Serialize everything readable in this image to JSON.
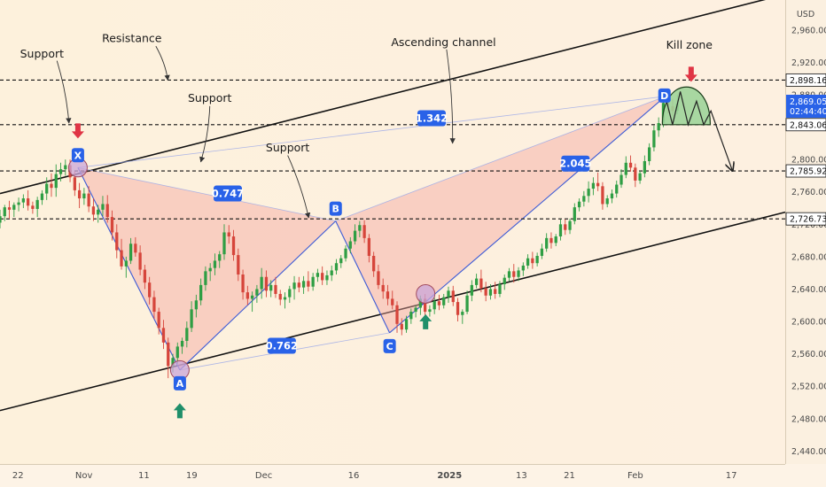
{
  "chart_data": {
    "type": "candlestick",
    "currency": "USD",
    "yaxis_ticks": [
      2960,
      2920,
      2880,
      2840,
      2800,
      2760,
      2720,
      2680,
      2640,
      2600,
      2560,
      2520,
      2480,
      2440
    ],
    "yaxis_tick_labels": [
      "2,960.00",
      "2,920.00",
      "2,880.00",
      "2,840.00",
      "2,800.00",
      "2,760.00",
      "2,720.00",
      "2,680.00",
      "2,640.00",
      "2,600.00",
      "2,560.00",
      "2,520.00",
      "2,480.00",
      "2,440.00"
    ],
    "ylim": [
      2424,
      2997
    ],
    "xaxis_labels": [
      {
        "label": "22",
        "day": -11,
        "bold": false
      },
      {
        "label": "Nov",
        "day": 0,
        "bold": false
      },
      {
        "label": "11",
        "day": 10,
        "bold": false
      },
      {
        "label": "19",
        "day": 18,
        "bold": false
      },
      {
        "label": "Dec",
        "day": 30,
        "bold": false
      },
      {
        "label": "16",
        "day": 45,
        "bold": false
      },
      {
        "label": "2025",
        "day": 61,
        "bold": true
      },
      {
        "label": "13",
        "day": 73,
        "bold": false
      },
      {
        "label": "21",
        "day": 81,
        "bold": false
      },
      {
        "label": "Feb",
        "day": 92,
        "bold": false
      },
      {
        "label": "17",
        "day": 108,
        "bold": false
      }
    ],
    "xlim": [
      -14,
      117
    ],
    "price_levels": [
      {
        "value": 2898.16,
        "label": "2,898.16"
      },
      {
        "value": 2843.06,
        "label": "2,843.06"
      },
      {
        "value": 2785.92,
        "label": "2,785.92"
      },
      {
        "value": 2726.73,
        "label": "2,726.73"
      }
    ],
    "current_price": {
      "value": 2869.05,
      "label": "2,869.05",
      "countdown": "02:44:40"
    },
    "harmonic_pattern": {
      "points": [
        {
          "name": "X",
          "day": -1,
          "price": 2790
        },
        {
          "name": "A",
          "day": 16,
          "price": 2540
        },
        {
          "name": "B",
          "day": 42,
          "price": 2724
        },
        {
          "name": "C",
          "day": 51,
          "price": 2586
        },
        {
          "name": "D",
          "day": 97,
          "price": 2878
        }
      ],
      "ratios": [
        {
          "label": "0.747",
          "day": 24,
          "price": 2758
        },
        {
          "label": "0.762",
          "day": 33,
          "price": 2570
        },
        {
          "label": "1.342",
          "day": 58,
          "price": 2851
        },
        {
          "label": "2.045",
          "day": 82,
          "price": 2795
        }
      ]
    },
    "channel": {
      "upper": {
        "start": {
          "day": -14,
          "price": 2758
        },
        "end": {
          "day": 117,
          "price": 3004
        }
      },
      "lower": {
        "start": {
          "day": -14,
          "price": 2490
        },
        "end": {
          "day": 117,
          "price": 2735
        }
      }
    },
    "annotations": [
      {
        "text": "Support",
        "day": -7,
        "price": 2926
      },
      {
        "text": "Resistance",
        "day": 8,
        "price": 2945
      },
      {
        "text": "Support",
        "day": 21,
        "price": 2871
      },
      {
        "text": "Support",
        "day": 34,
        "price": 2810
      },
      {
        "text": "Ascending channel",
        "day": 60,
        "price": 2940
      },
      {
        "text": "Kill zone",
        "day": 101,
        "price": 2937
      }
    ],
    "candles": [
      [
        2722,
        2738,
        2715,
        2730
      ],
      [
        2730,
        2744,
        2724,
        2741
      ],
      [
        2741,
        2749,
        2727,
        2738
      ],
      [
        2738,
        2747,
        2729,
        2744
      ],
      [
        2744,
        2753,
        2736,
        2747
      ],
      [
        2747,
        2757,
        2740,
        2752
      ],
      [
        2752,
        2762,
        2737,
        2743
      ],
      [
        2743,
        2748,
        2733,
        2739
      ],
      [
        2739,
        2754,
        2729,
        2750
      ],
      [
        2750,
        2762,
        2744,
        2758
      ],
      [
        2758,
        2778,
        2750,
        2770
      ],
      [
        2770,
        2783,
        2754,
        2765
      ],
      [
        2765,
        2794,
        2754,
        2782
      ],
      [
        2782,
        2796,
        2773,
        2788
      ],
      [
        2788,
        2800,
        2780,
        2793
      ],
      [
        2793,
        2800,
        2772,
        2778
      ],
      [
        2778,
        2785,
        2755,
        2762
      ],
      [
        2762,
        2771,
        2740,
        2752
      ],
      [
        2752,
        2765,
        2744,
        2758
      ],
      [
        2758,
        2767,
        2735,
        2742
      ],
      [
        2742,
        2752,
        2724,
        2732
      ],
      [
        2732,
        2744,
        2722,
        2738
      ],
      [
        2738,
        2755,
        2730,
        2745
      ],
      [
        2745,
        2756,
        2722,
        2729
      ],
      [
        2729,
        2737,
        2700,
        2710
      ],
      [
        2710,
        2720,
        2678,
        2688
      ],
      [
        2688,
        2702,
        2664,
        2668
      ],
      [
        2668,
        2680,
        2654,
        2675
      ],
      [
        2675,
        2703,
        2671,
        2696
      ],
      [
        2696,
        2704,
        2680,
        2685
      ],
      [
        2685,
        2694,
        2657,
        2664
      ],
      [
        2664,
        2670,
        2640,
        2648
      ],
      [
        2648,
        2655,
        2621,
        2630
      ],
      [
        2630,
        2638,
        2603,
        2612
      ],
      [
        2612,
        2617,
        2584,
        2592
      ],
      [
        2592,
        2602,
        2566,
        2574
      ],
      [
        2574,
        2580,
        2530,
        2545
      ],
      [
        2545,
        2560,
        2537,
        2555
      ],
      [
        2555,
        2574,
        2548,
        2569
      ],
      [
        2569,
        2580,
        2560,
        2576
      ],
      [
        2576,
        2600,
        2568,
        2592
      ],
      [
        2592,
        2625,
        2587,
        2615
      ],
      [
        2615,
        2633,
        2605,
        2626
      ],
      [
        2626,
        2653,
        2620,
        2645
      ],
      [
        2645,
        2668,
        2638,
        2662
      ],
      [
        2662,
        2672,
        2650,
        2666
      ],
      [
        2666,
        2684,
        2657,
        2675
      ],
      [
        2675,
        2687,
        2666,
        2683
      ],
      [
        2683,
        2720,
        2676,
        2710
      ],
      [
        2710,
        2719,
        2696,
        2705
      ],
      [
        2705,
        2713,
        2675,
        2682
      ],
      [
        2682,
        2690,
        2650,
        2658
      ],
      [
        2658,
        2664,
        2627,
        2636
      ],
      [
        2636,
        2644,
        2620,
        2628
      ],
      [
        2628,
        2637,
        2612,
        2632
      ],
      [
        2632,
        2645,
        2623,
        2640
      ],
      [
        2640,
        2666,
        2628,
        2655
      ],
      [
        2655,
        2663,
        2630,
        2638
      ],
      [
        2638,
        2651,
        2630,
        2645
      ],
      [
        2645,
        2655,
        2629,
        2634
      ],
      [
        2634,
        2639,
        2620,
        2627
      ],
      [
        2627,
        2636,
        2616,
        2630
      ],
      [
        2630,
        2644,
        2623,
        2640
      ],
      [
        2640,
        2656,
        2627,
        2648
      ],
      [
        2648,
        2655,
        2636,
        2642
      ],
      [
        2642,
        2656,
        2634,
        2650
      ],
      [
        2650,
        2662,
        2637,
        2643
      ],
      [
        2643,
        2660,
        2638,
        2655
      ],
      [
        2655,
        2665,
        2649,
        2660
      ],
      [
        2660,
        2668,
        2645,
        2651
      ],
      [
        2651,
        2663,
        2645,
        2657
      ],
      [
        2657,
        2669,
        2650,
        2663
      ],
      [
        2663,
        2677,
        2658,
        2672
      ],
      [
        2672,
        2682,
        2666,
        2678
      ],
      [
        2678,
        2694,
        2674,
        2690
      ],
      [
        2690,
        2704,
        2684,
        2699
      ],
      [
        2699,
        2720,
        2695,
        2712
      ],
      [
        2712,
        2724,
        2704,
        2719
      ],
      [
        2719,
        2725,
        2697,
        2703
      ],
      [
        2703,
        2708,
        2673,
        2681
      ],
      [
        2681,
        2686,
        2655,
        2662
      ],
      [
        2662,
        2670,
        2640,
        2645
      ],
      [
        2645,
        2653,
        2628,
        2637
      ],
      [
        2637,
        2645,
        2620,
        2628
      ],
      [
        2628,
        2638,
        2615,
        2620
      ],
      [
        2620,
        2625,
        2586,
        2597
      ],
      [
        2597,
        2604,
        2583,
        2590
      ],
      [
        2590,
        2607,
        2586,
        2603
      ],
      [
        2603,
        2616,
        2597,
        2612
      ],
      [
        2612,
        2620,
        2605,
        2617
      ],
      [
        2617,
        2632,
        2608,
        2628
      ],
      [
        2628,
        2634,
        2605,
        2612
      ],
      [
        2612,
        2620,
        2606,
        2615
      ],
      [
        2615,
        2630,
        2609,
        2625
      ],
      [
        2625,
        2633,
        2614,
        2620
      ],
      [
        2620,
        2634,
        2616,
        2630
      ],
      [
        2630,
        2643,
        2623,
        2638
      ],
      [
        2638,
        2644,
        2619,
        2624
      ],
      [
        2624,
        2629,
        2600,
        2608
      ],
      [
        2608,
        2615,
        2597,
        2612
      ],
      [
        2612,
        2638,
        2609,
        2632
      ],
      [
        2632,
        2651,
        2625,
        2645
      ],
      [
        2645,
        2659,
        2641,
        2653
      ],
      [
        2653,
        2664,
        2636,
        2641
      ],
      [
        2641,
        2649,
        2625,
        2632
      ],
      [
        2632,
        2646,
        2627,
        2640
      ],
      [
        2640,
        2649,
        2628,
        2634
      ],
      [
        2634,
        2650,
        2630,
        2646
      ],
      [
        2646,
        2658,
        2639,
        2654
      ],
      [
        2654,
        2666,
        2650,
        2662
      ],
      [
        2662,
        2671,
        2648,
        2655
      ],
      [
        2655,
        2667,
        2650,
        2663
      ],
      [
        2663,
        2673,
        2656,
        2669
      ],
      [
        2669,
        2683,
        2665,
        2678
      ],
      [
        2678,
        2686,
        2665,
        2672
      ],
      [
        2672,
        2685,
        2668,
        2681
      ],
      [
        2681,
        2696,
        2677,
        2690
      ],
      [
        2690,
        2709,
        2686,
        2703
      ],
      [
        2703,
        2710,
        2690,
        2697
      ],
      [
        2697,
        2708,
        2693,
        2705
      ],
      [
        2705,
        2726,
        2700,
        2720
      ],
      [
        2720,
        2726,
        2707,
        2713
      ],
      [
        2713,
        2727,
        2708,
        2724
      ],
      [
        2724,
        2746,
        2720,
        2741
      ],
      [
        2741,
        2752,
        2736,
        2748
      ],
      [
        2748,
        2761,
        2742,
        2755
      ],
      [
        2755,
        2773,
        2747,
        2764
      ],
      [
        2764,
        2778,
        2756,
        2771
      ],
      [
        2771,
        2784,
        2761,
        2767
      ],
      [
        2767,
        2772,
        2738,
        2745
      ],
      [
        2745,
        2756,
        2741,
        2752
      ],
      [
        2752,
        2763,
        2746,
        2758
      ],
      [
        2758,
        2774,
        2753,
        2769
      ],
      [
        2769,
        2788,
        2765,
        2781
      ],
      [
        2781,
        2804,
        2777,
        2796
      ],
      [
        2796,
        2805,
        2785,
        2790
      ],
      [
        2790,
        2795,
        2766,
        2774
      ],
      [
        2774,
        2786,
        2770,
        2783
      ],
      [
        2783,
        2805,
        2778,
        2798
      ],
      [
        2798,
        2820,
        2793,
        2815
      ],
      [
        2815,
        2842,
        2810,
        2836
      ],
      [
        2836,
        2852,
        2828,
        2845
      ],
      [
        2845,
        2878,
        2840,
        2870
      ],
      [
        2870,
        2882,
        2857,
        2866
      ],
      [
        2866,
        2875,
        2854,
        2860
      ],
      [
        2860,
        2880,
        2856,
        2869
      ]
    ]
  }
}
